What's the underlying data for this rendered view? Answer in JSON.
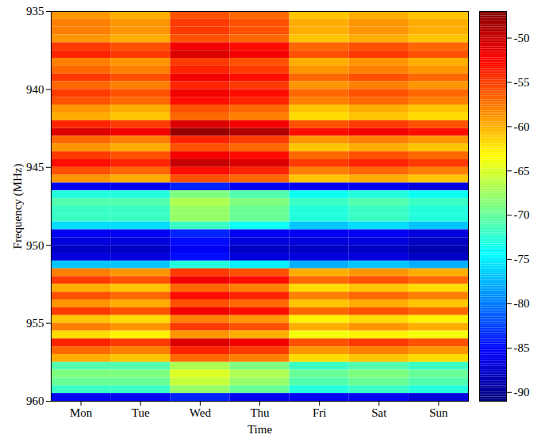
{
  "chart_data": {
    "type": "heatmap",
    "x_label": "Time",
    "y_label": "Frequency (MHz)",
    "categories": [
      "Mon",
      "Tue",
      "Wed",
      "Thu",
      "Fri",
      "Sat",
      "Sun"
    ],
    "ylim": [
      935,
      960
    ],
    "yticks": [
      935,
      940,
      945,
      950,
      955,
      960
    ],
    "y_bins": [
      935,
      935.5,
      936,
      936.5,
      937,
      937.5,
      938,
      938.5,
      939,
      939.5,
      940,
      940.5,
      941,
      941.5,
      942,
      942.5,
      943,
      943.5,
      944,
      944.5,
      945,
      945.5,
      946,
      946.5,
      947,
      947.5,
      948,
      948.5,
      949,
      949.5,
      950,
      950.5,
      951,
      951.5,
      952,
      952.5,
      953,
      953.5,
      954,
      954.5,
      955,
      955.5,
      956,
      956.5,
      957,
      957.5,
      958,
      958.5,
      959,
      959.5,
      960
    ],
    "cells": [
      [
        -59,
        -60,
        -56,
        -57,
        -61,
        -60,
        -61
      ],
      [
        -58,
        -59,
        -55,
        -56,
        -60,
        -59,
        -60
      ],
      [
        -58,
        -59,
        -55,
        -56,
        -60,
        -59,
        -60
      ],
      [
        -59,
        -60,
        -56,
        -57,
        -61,
        -60,
        -61
      ],
      [
        -55,
        -56,
        -52,
        -53,
        -57,
        -56,
        -57
      ],
      [
        -54,
        -55,
        -51,
        -52,
        -56,
        -55,
        -56
      ],
      [
        -58,
        -59,
        -55,
        -56,
        -60,
        -59,
        -60
      ],
      [
        -57,
        -58,
        -54,
        -55,
        -59,
        -58,
        -59
      ],
      [
        -55,
        -56,
        -52,
        -53,
        -57,
        -56,
        -57
      ],
      [
        -57,
        -58,
        -54,
        -55,
        -59,
        -58,
        -59
      ],
      [
        -55,
        -56,
        -52,
        -53,
        -57,
        -56,
        -57
      ],
      [
        -56,
        -57,
        -53,
        -54,
        -58,
        -57,
        -58
      ],
      [
        -59,
        -60,
        -56,
        -57,
        -61,
        -60,
        -61
      ],
      [
        -60,
        -61,
        -57,
        -58,
        -62,
        -61,
        -62
      ],
      [
        -54,
        -55,
        -51,
        -52,
        -56,
        -55,
        -56
      ],
      [
        -51,
        -52,
        -48,
        -49,
        -53,
        -52,
        -53
      ],
      [
        -57,
        -58,
        -54,
        -55,
        -59,
        -58,
        -59
      ],
      [
        -59,
        -60,
        -56,
        -57,
        -61,
        -60,
        -61
      ],
      [
        -55,
        -56,
        -52,
        -53,
        -57,
        -56,
        -57
      ],
      [
        -53,
        -54,
        -50,
        -51,
        -55,
        -54,
        -55
      ],
      [
        -56,
        -57,
        -53,
        -54,
        -58,
        -57,
        -58
      ],
      [
        -59,
        -60,
        -56,
        -57,
        -61,
        -60,
        -61
      ],
      [
        -86,
        -86,
        -84,
        -86,
        -86,
        -86,
        -87
      ],
      [
        -73,
        -73,
        -69,
        -71,
        -74,
        -73,
        -74
      ],
      [
        -71,
        -71,
        -67,
        -69,
        -72,
        -71,
        -72
      ],
      [
        -72,
        -72,
        -68,
        -70,
        -73,
        -72,
        -73
      ],
      [
        -72,
        -72,
        -68,
        -70,
        -73,
        -72,
        -73
      ],
      [
        -76,
        -76,
        -72,
        -74,
        -77,
        -76,
        -77
      ],
      [
        -86,
        -86,
        -84,
        -86,
        -86,
        -86,
        -87
      ],
      [
        -87,
        -87,
        -85,
        -87,
        -87,
        -87,
        -88
      ],
      [
        -88,
        -88,
        -86,
        -88,
        -88,
        -88,
        -89
      ],
      [
        -87,
        -87,
        -85,
        -87,
        -87,
        -87,
        -88
      ],
      [
        -77,
        -77,
        -73,
        -75,
        -78,
        -77,
        -78
      ],
      [
        -58,
        -59,
        -55,
        -56,
        -60,
        -59,
        -60
      ],
      [
        -55,
        -56,
        -52,
        -53,
        -57,
        -56,
        -57
      ],
      [
        -60,
        -61,
        -57,
        -58,
        -62,
        -61,
        -62
      ],
      [
        -56,
        -57,
        -53,
        -54,
        -58,
        -57,
        -58
      ],
      [
        -59,
        -60,
        -56,
        -57,
        -61,
        -60,
        -61
      ],
      [
        -55,
        -56,
        -52,
        -53,
        -57,
        -56,
        -57
      ],
      [
        -61,
        -62,
        -58,
        -59,
        -63,
        -62,
        -63
      ],
      [
        -58,
        -59,
        -55,
        -56,
        -60,
        -59,
        -60
      ],
      [
        -62,
        -63,
        -59,
        -60,
        -64,
        -63,
        -64
      ],
      [
        -54,
        -55,
        -51,
        -52,
        -56,
        -55,
        -56
      ],
      [
        -57,
        -58,
        -54,
        -55,
        -59,
        -58,
        -59
      ],
      [
        -60,
        -61,
        -57,
        -58,
        -62,
        -61,
        -62
      ],
      [
        -71,
        -71,
        -67,
        -69,
        -72,
        -71,
        -72
      ],
      [
        -69,
        -69,
        -65,
        -67,
        -70,
        -69,
        -70
      ],
      [
        -70,
        -70,
        -66,
        -68,
        -71,
        -70,
        -71
      ],
      [
        -72,
        -72,
        -68,
        -70,
        -73,
        -72,
        -73
      ],
      [
        -86,
        -86,
        -84,
        -86,
        -86,
        -86,
        -87
      ]
    ],
    "colorbar": {
      "range": [
        -91,
        -47
      ],
      "ticks": [
        -90,
        -85,
        -80,
        -75,
        -70,
        -65,
        -60,
        -55,
        -50
      ]
    }
  }
}
